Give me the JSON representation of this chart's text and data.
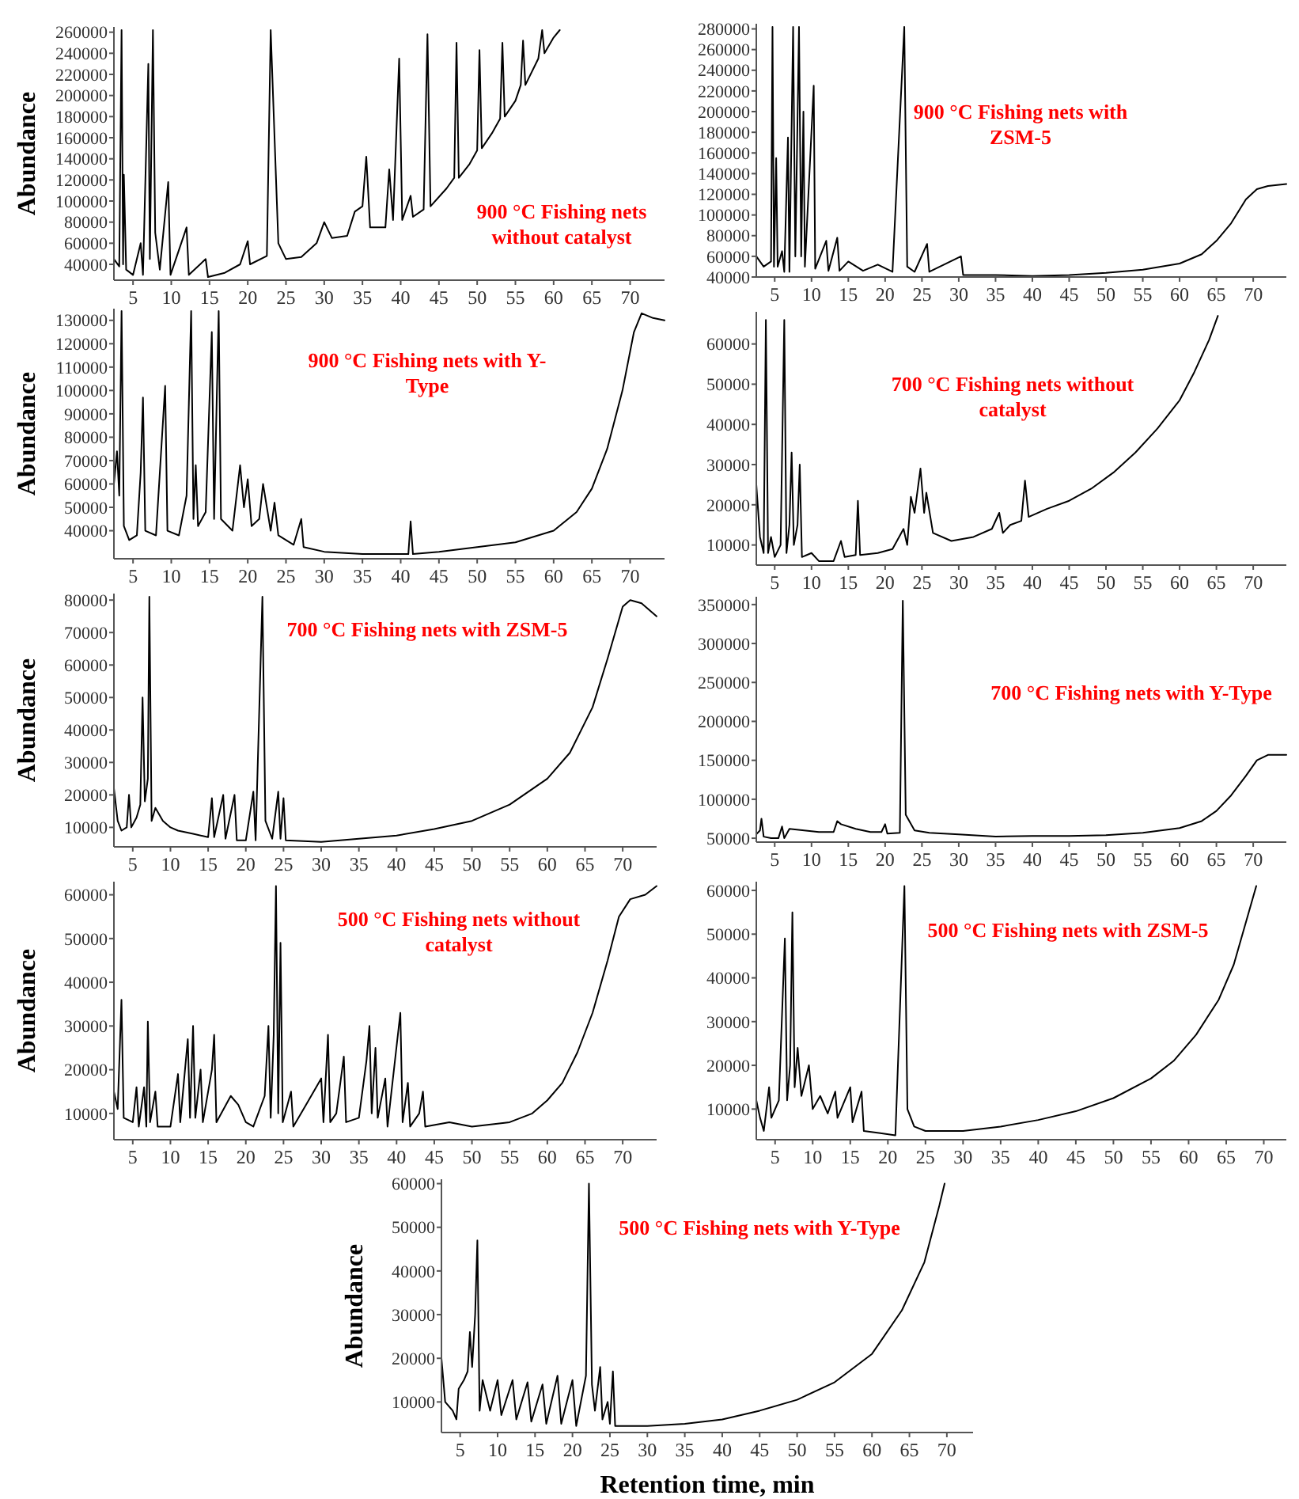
{
  "chart_data": [
    {
      "type": "line",
      "color": "#000000",
      "ylabel": "Abundance",
      "annotations": [
        "900 °C Fishing nets without catalyst"
      ],
      "xlim": [
        2.5,
        74.5
      ],
      "xticks": [
        5,
        10,
        15,
        20,
        25,
        30,
        35,
        40,
        45,
        50,
        55,
        60,
        65,
        70
      ],
      "ylim": [
        25000,
        265000
      ],
      "yticks": [
        40000,
        60000,
        80000,
        100000,
        120000,
        140000,
        160000,
        180000,
        200000,
        220000,
        240000,
        260000
      ],
      "x": [
        2.5,
        3.2,
        3.5,
        3.7,
        3.8,
        4.1,
        5,
        6,
        6.3,
        7,
        7.2,
        7.6,
        7.9,
        8.5,
        9.6,
        9.9,
        12,
        12.3,
        14.5,
        14.8,
        17,
        19,
        20,
        20.3,
        22.5,
        23,
        24,
        25,
        27,
        29,
        30,
        31,
        33,
        34,
        35,
        35.5,
        36,
        38,
        38.5,
        39,
        39.8,
        40.2,
        41.3,
        41.6,
        43,
        43.5,
        43.9,
        46,
        47,
        47.3,
        47.6,
        49,
        50,
        50.3,
        50.6,
        52,
        53,
        53.3,
        53.6,
        55,
        55.7,
        56,
        56.3,
        58,
        58.5,
        58.8,
        60,
        60.8
      ],
      "values": [
        45000,
        38000,
        262000,
        40000,
        125000,
        35000,
        30000,
        60000,
        30000,
        230000,
        45000,
        262000,
        70000,
        35000,
        118000,
        30000,
        75000,
        30000,
        45000,
        28000,
        32000,
        40000,
        62000,
        40000,
        48000,
        262000,
        60000,
        45000,
        47000,
        60000,
        80000,
        65000,
        67000,
        90000,
        95000,
        142000,
        75000,
        75000,
        130000,
        82000,
        235000,
        82000,
        105000,
        85000,
        92000,
        258000,
        95000,
        112000,
        122000,
        250000,
        122000,
        135000,
        148000,
        243000,
        150000,
        165000,
        178000,
        250000,
        180000,
        195000,
        210000,
        252000,
        210000,
        235000,
        262000,
        240000,
        255000,
        262000
      ]
    },
    {
      "type": "line",
      "color": "#000000",
      "annotations": [
        "900 °C Fishing nets with ZSM-5"
      ],
      "xlim": [
        2.5,
        74.5
      ],
      "xticks": [
        5,
        10,
        15,
        20,
        25,
        30,
        35,
        40,
        45,
        50,
        55,
        60,
        65,
        70
      ],
      "ylim": [
        40000,
        285000
      ],
      "yticks": [
        40000,
        60000,
        80000,
        100000,
        120000,
        140000,
        160000,
        180000,
        200000,
        220000,
        240000,
        260000,
        280000
      ],
      "x": [
        2.5,
        3.5,
        4.5,
        4.7,
        4.9,
        5.2,
        5.4,
        6,
        6.3,
        6.8,
        7,
        7.5,
        7.8,
        8.3,
        8.6,
        8.9,
        9.1,
        10.3,
        10.5,
        12,
        12.3,
        13.5,
        13.8,
        15,
        17,
        19,
        21,
        22.6,
        23,
        24,
        25.7,
        26,
        30.3,
        30.6,
        35,
        40,
        45,
        50,
        55,
        60,
        63,
        65,
        67,
        69,
        70.5,
        72,
        74.5
      ],
      "values": [
        60000,
        50000,
        55000,
        282000,
        50000,
        155000,
        50000,
        65000,
        45000,
        175000,
        45000,
        282000,
        60000,
        282000,
        60000,
        200000,
        50000,
        225000,
        48000,
        75000,
        46000,
        78000,
        46000,
        55000,
        46000,
        52000,
        45000,
        282000,
        50000,
        45000,
        72000,
        45000,
        60000,
        42000,
        42000,
        41000,
        42000,
        44000,
        47000,
        53000,
        62000,
        75000,
        92000,
        115000,
        125000,
        128000,
        130000
      ]
    },
    {
      "type": "line",
      "color": "#000000",
      "ylabel": "Abundance",
      "annotations": [
        "900 °C Fishing nets with Y-Type"
      ],
      "xlim": [
        2.5,
        74.5
      ],
      "xticks": [
        5,
        10,
        15,
        20,
        25,
        30,
        35,
        40,
        45,
        50,
        55,
        60,
        65,
        70
      ],
      "ylim": [
        28000,
        135000
      ],
      "yticks": [
        40000,
        50000,
        60000,
        70000,
        80000,
        90000,
        100000,
        110000,
        120000,
        130000
      ],
      "x": [
        2.5,
        2.9,
        3.2,
        3.5,
        3.8,
        4.5,
        5.5,
        6,
        6.3,
        6.6,
        8,
        9.2,
        9.5,
        11,
        12,
        12.6,
        12.9,
        13.2,
        13.5,
        14.5,
        15.3,
        15.6,
        16.2,
        16.5,
        18,
        19,
        19.5,
        20,
        20.5,
        21.5,
        22,
        23,
        23.5,
        24,
        26,
        27,
        27.3,
        30,
        35,
        39,
        41,
        41.3,
        41.6,
        45,
        50,
        55,
        60,
        63,
        65,
        67,
        69,
        70.5,
        71.5,
        73,
        74.5
      ],
      "values": [
        60000,
        74000,
        55000,
        134000,
        42000,
        36000,
        38000,
        65000,
        97000,
        40000,
        38000,
        102000,
        40000,
        38000,
        55000,
        134000,
        45000,
        68000,
        42000,
        48000,
        125000,
        45000,
        134000,
        45000,
        40000,
        68000,
        50000,
        62000,
        42000,
        45000,
        60000,
        40000,
        52000,
        38000,
        34000,
        45000,
        33000,
        31000,
        30000,
        30000,
        30000,
        44000,
        30000,
        31000,
        33000,
        35000,
        40000,
        48000,
        58000,
        75000,
        100000,
        125000,
        133000,
        131000,
        130000
      ]
    },
    {
      "type": "line",
      "color": "#000000",
      "annotations": [
        "700 °C Fishing nets without catalyst"
      ],
      "xlim": [
        2.5,
        74.5
      ],
      "xticks": [
        5,
        10,
        15,
        20,
        25,
        30,
        35,
        40,
        45,
        50,
        55,
        60,
        65,
        70
      ],
      "ylim": [
        5000,
        68000
      ],
      "yticks": [
        10000,
        20000,
        30000,
        40000,
        50000,
        60000
      ],
      "x": [
        2.5,
        3,
        3.5,
        3.8,
        4.1,
        4.5,
        5,
        5.8,
        6.3,
        6.6,
        7,
        7.3,
        7.6,
        8.1,
        8.4,
        8.7,
        10,
        11,
        13,
        14,
        14.5,
        16,
        16.3,
        16.6,
        19,
        21,
        22.5,
        23,
        23.5,
        24,
        24.8,
        25.3,
        25.6,
        26.5,
        29,
        32,
        34.5,
        35.5,
        36,
        37,
        38.5,
        39,
        39.5,
        42,
        45,
        48,
        51,
        54,
        57,
        60,
        62,
        64,
        65.2
      ],
      "values": [
        25000,
        12000,
        8000,
        66000,
        8000,
        12000,
        7000,
        10000,
        66000,
        8000,
        15000,
        33000,
        10000,
        15000,
        30000,
        7000,
        8000,
        6000,
        6000,
        11000,
        7000,
        7500,
        21000,
        7500,
        8000,
        9000,
        14000,
        10000,
        22000,
        18000,
        29000,
        18000,
        23000,
        13000,
        11000,
        12000,
        14000,
        18000,
        13000,
        15000,
        16000,
        26000,
        17000,
        19000,
        21000,
        24000,
        28000,
        33000,
        39000,
        46000,
        53000,
        61000,
        67000
      ]
    },
    {
      "type": "line",
      "color": "#000000",
      "ylabel": "Abundance",
      "annotations": [
        "700 °C Fishing nets with ZSM-5"
      ],
      "xlim": [
        2.5,
        74.5
      ],
      "xticks": [
        5,
        10,
        15,
        20,
        25,
        30,
        35,
        40,
        45,
        50,
        55,
        60,
        65,
        70
      ],
      "ylim": [
        4000,
        82000
      ],
      "yticks": [
        10000,
        20000,
        30000,
        40000,
        50000,
        60000,
        70000,
        80000
      ],
      "x": [
        2.5,
        3,
        3.5,
        4.2,
        4.5,
        4.8,
        5.5,
        6,
        6.3,
        6.6,
        7,
        7.2,
        7.5,
        8,
        9,
        10,
        11,
        13,
        15,
        15.5,
        15.8,
        17,
        17.3,
        18.5,
        18.8,
        20,
        21,
        21.3,
        22.2,
        22.6,
        23.5,
        24.3,
        24.6,
        25,
        25.3,
        30,
        35,
        40,
        45,
        50,
        55,
        60,
        63,
        66,
        68,
        70,
        71,
        72.5,
        74.5
      ],
      "values": [
        22000,
        12000,
        9000,
        10000,
        20000,
        10000,
        13000,
        17000,
        50000,
        18000,
        25000,
        81000,
        12000,
        16000,
        12000,
        10000,
        9000,
        8000,
        7000,
        19000,
        7000,
        20000,
        6500,
        20000,
        6000,
        6000,
        21000,
        6000,
        81000,
        12000,
        6500,
        21000,
        6500,
        19000,
        6000,
        5500,
        6500,
        7500,
        9500,
        12000,
        17000,
        25000,
        33000,
        47000,
        62000,
        78000,
        80000,
        79000,
        75000
      ]
    },
    {
      "type": "line",
      "color": "#000000",
      "annotations": [
        "700 °C Fishing nets with Y-Type"
      ],
      "xlim": [
        2.5,
        74.5
      ],
      "xticks": [
        5,
        10,
        15,
        20,
        25,
        30,
        35,
        40,
        45,
        50,
        55,
        60,
        65,
        70
      ],
      "ylim": [
        45000,
        360000
      ],
      "yticks": [
        50000,
        100000,
        150000,
        200000,
        250000,
        300000,
        350000
      ],
      "x": [
        2.5,
        3,
        3.2,
        3.5,
        4.5,
        5.5,
        6,
        6.3,
        7,
        9,
        11,
        13,
        13.5,
        14,
        16,
        18,
        19.5,
        20,
        20.3,
        22,
        22.4,
        22.8,
        24,
        26,
        30,
        35,
        40,
        45,
        50,
        55,
        60,
        63,
        65,
        67,
        69,
        70.5,
        72,
        74.5
      ],
      "values": [
        55000,
        60000,
        75000,
        52000,
        50000,
        50000,
        65000,
        50000,
        62000,
        60000,
        58000,
        58000,
        72000,
        68000,
        62000,
        58000,
        58000,
        68000,
        56000,
        57000,
        355000,
        80000,
        60000,
        57000,
        55000,
        52000,
        53000,
        53000,
        54000,
        57000,
        63000,
        72000,
        85000,
        105000,
        130000,
        150000,
        157000,
        157000
      ]
    },
    {
      "type": "line",
      "color": "#000000",
      "ylabel": "Abundance",
      "annotations": [
        "500 °C Fishing nets without catalyst"
      ],
      "xlim": [
        2.5,
        74.5
      ],
      "xticks": [
        5,
        10,
        15,
        20,
        25,
        30,
        35,
        40,
        45,
        50,
        55,
        60,
        65,
        70
      ],
      "ylim": [
        4000,
        63000
      ],
      "yticks": [
        10000,
        20000,
        30000,
        40000,
        50000,
        60000
      ],
      "x": [
        2.5,
        3,
        3.5,
        3.8,
        5,
        5.5,
        5.8,
        6.5,
        6.8,
        7,
        7.3,
        8,
        8.3,
        10,
        11,
        11.3,
        12.3,
        12.6,
        13,
        13.3,
        14,
        14.3,
        15.5,
        15.8,
        16.1,
        18,
        19,
        20,
        21,
        22.5,
        23,
        23.3,
        23.7,
        24,
        24.3,
        24.6,
        24.9,
        26,
        26.3,
        28,
        30,
        30.3,
        30.9,
        31.2,
        32,
        33,
        33.3,
        35,
        36,
        36.4,
        36.7,
        37.2,
        37.5,
        38.5,
        38.8,
        40.5,
        40.8,
        41.5,
        41.8,
        43,
        43.5,
        43.8,
        47,
        50,
        55,
        58,
        60,
        62,
        64,
        66,
        68,
        69.5,
        71,
        73,
        74.5
      ],
      "values": [
        15000,
        11000,
        36000,
        9000,
        8000,
        16000,
        7000,
        16000,
        7000,
        31000,
        8000,
        15000,
        7000,
        7000,
        19000,
        8000,
        27000,
        9000,
        30000,
        9000,
        20000,
        8000,
        20000,
        28000,
        8000,
        14000,
        12000,
        8000,
        7000,
        14000,
        30000,
        9000,
        28000,
        62000,
        10000,
        49000,
        8000,
        15000,
        7000,
        12000,
        18000,
        8000,
        28000,
        8000,
        10000,
        23000,
        8000,
        9000,
        22000,
        30000,
        10000,
        25000,
        9000,
        18000,
        7000,
        33000,
        8000,
        17000,
        7000,
        10000,
        15000,
        7000,
        8000,
        7000,
        8000,
        10000,
        13000,
        17000,
        24000,
        33000,
        45000,
        55000,
        59000,
        60000,
        62000
      ]
    },
    {
      "type": "line",
      "color": "#000000",
      "annotations": [
        "500 °C Fishing nets with ZSM-5"
      ],
      "xlim": [
        2.5,
        73
      ],
      "xticks": [
        5,
        10,
        15,
        20,
        25,
        30,
        35,
        40,
        45,
        50,
        55,
        60,
        65,
        70
      ],
      "ylim": [
        3000,
        62000
      ],
      "yticks": [
        10000,
        20000,
        30000,
        40000,
        50000,
        60000
      ],
      "x": [
        2.5,
        3,
        3.5,
        4.2,
        4.5,
        5.5,
        6.3,
        6.6,
        7,
        7.3,
        7.6,
        8,
        8.5,
        9.5,
        10,
        11,
        12,
        13,
        13.3,
        15,
        15.3,
        16.5,
        16.8,
        19,
        21,
        22.2,
        22.6,
        23.5,
        25,
        30,
        35,
        40,
        45,
        50,
        55,
        58,
        61,
        64,
        66,
        68,
        69
      ],
      "values": [
        12000,
        8000,
        5000,
        15000,
        8000,
        12000,
        49000,
        12000,
        20000,
        55000,
        15000,
        24000,
        13000,
        20000,
        10000,
        13000,
        9000,
        14000,
        8000,
        15000,
        7000,
        14000,
        5000,
        4500,
        4000,
        61000,
        10000,
        6000,
        5000,
        5000,
        6000,
        7500,
        9500,
        12500,
        17000,
        21000,
        27000,
        35000,
        43000,
        55000,
        61000
      ]
    },
    {
      "type": "line",
      "color": "#000000",
      "ylabel": "Abundance",
      "xlabel": "Retention time, min",
      "annotations": [
        "500 °C Fishing nets with Y-Type"
      ],
      "xlim": [
        2.5,
        73.5
      ],
      "xticks": [
        5,
        10,
        15,
        20,
        25,
        30,
        35,
        40,
        45,
        50,
        55,
        60,
        65,
        70
      ],
      "ylim": [
        3000,
        61000
      ],
      "yticks": [
        10000,
        20000,
        30000,
        40000,
        50000,
        60000
      ],
      "x": [
        2.5,
        3,
        4,
        4.5,
        4.8,
        5.5,
        6,
        6.3,
        6.6,
        7,
        7.3,
        7.6,
        8,
        9,
        10,
        10.5,
        12,
        12.5,
        14,
        14.5,
        16,
        16.5,
        18,
        18.5,
        20,
        20.5,
        21.8,
        22.2,
        22.6,
        23,
        23.7,
        24,
        24.7,
        25,
        25.4,
        25.7,
        30,
        35,
        40,
        45,
        50,
        55,
        60,
        64,
        67,
        69,
        69.7
      ],
      "values": [
        20000,
        10000,
        8000,
        6000,
        13000,
        15000,
        17000,
        26000,
        18000,
        30000,
        47000,
        8000,
        15000,
        8000,
        15000,
        7000,
        15000,
        6000,
        14500,
        5500,
        14000,
        5000,
        16000,
        5000,
        15000,
        4500,
        16000,
        60000,
        14000,
        8000,
        18000,
        6000,
        10000,
        5000,
        17000,
        4500,
        4500,
        5000,
        6000,
        8000,
        10500,
        14500,
        21000,
        31000,
        42000,
        55000,
        60000
      ]
    }
  ]
}
